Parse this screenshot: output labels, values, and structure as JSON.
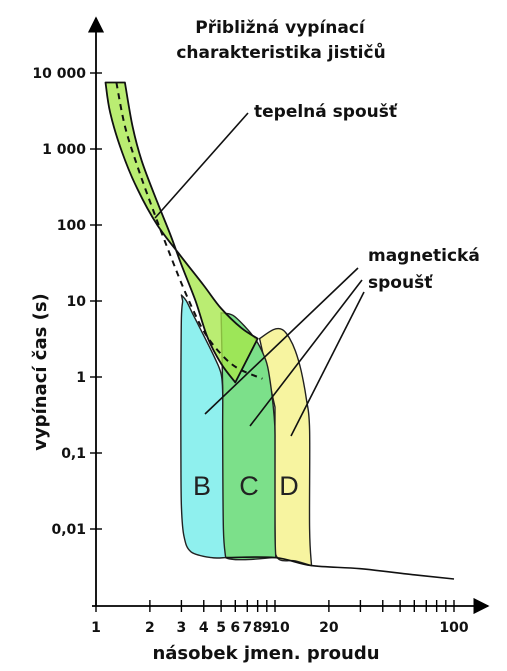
{
  "chart_data": {
    "type": "area",
    "title_lines": [
      "Přibližná vypínací",
      "charakteristika jističů"
    ],
    "xlabel": "násobek jmen. proudu",
    "ylabel": "vypínací čas (s)",
    "x_scale": "log",
    "y_scale": "log",
    "xlim": [
      1,
      100
    ],
    "ylim": [
      0.001,
      10000
    ],
    "x_tick_labels": [
      {
        "value": 1,
        "label": "1"
      },
      {
        "value": 2,
        "label": "2"
      },
      {
        "value": 3,
        "label": "3"
      },
      {
        "value": 4,
        "label": "4"
      },
      {
        "value": 5,
        "label": "5"
      },
      {
        "value": 6,
        "label": "6"
      },
      {
        "value": 7,
        "label": "7"
      },
      {
        "value": 8,
        "label": "8"
      },
      {
        "value": 9,
        "label": "9"
      },
      {
        "value": 10,
        "label": "10"
      },
      {
        "value": 20,
        "label": "20"
      },
      {
        "value": 100,
        "label": "100"
      }
    ],
    "x_minor_ticks": [
      30,
      40,
      50,
      60,
      70,
      80,
      90
    ],
    "y_tick_labels": [
      {
        "value": 10000,
        "label": "10 000"
      },
      {
        "value": 1000,
        "label": "1 000"
      },
      {
        "value": 100,
        "label": "100"
      },
      {
        "value": 10,
        "label": "10"
      },
      {
        "value": 1,
        "label": "1"
      },
      {
        "value": 0.1,
        "label": "0,1"
      },
      {
        "value": 0.01,
        "label": "0,01"
      }
    ],
    "annotations": {
      "thermal": "tepelná spoušť",
      "magnetic_lines": [
        "magnetická",
        "spoušť"
      ]
    },
    "thermal_band": {
      "color": "#a6e84a",
      "upper": [
        [
          1.13,
          7500
        ],
        [
          1.2,
          3000
        ],
        [
          1.4,
          900
        ],
        [
          1.7,
          300
        ],
        [
          2.2,
          100
        ],
        [
          3,
          38
        ],
        [
          4,
          16
        ],
        [
          5,
          8
        ],
        [
          6.5,
          4.4
        ],
        [
          8,
          3.2
        ]
      ],
      "lower": [
        [
          1.45,
          7500
        ],
        [
          1.6,
          2000
        ],
        [
          1.8,
          700
        ],
        [
          2.2,
          200
        ],
        [
          2.6,
          75
        ],
        [
          3,
          30
        ],
        [
          3.6,
          10
        ],
        [
          4.2,
          3.3
        ],
        [
          5,
          1.5
        ],
        [
          6,
          0.85
        ]
      ],
      "median": [
        [
          1.3,
          7500
        ],
        [
          1.45,
          2000
        ],
        [
          1.7,
          600
        ],
        [
          2.1,
          150
        ],
        [
          2.6,
          40
        ],
        [
          3.2,
          12
        ],
        [
          4,
          4
        ],
        [
          5,
          2
        ],
        [
          6.2,
          1.3
        ],
        [
          8.5,
          0.95
        ]
      ]
    },
    "series": [
      {
        "name": "B",
        "color": "#8ff0ee",
        "upper": [
          [
            3,
            12
          ],
          [
            3.2,
            10
          ],
          [
            3.5,
            6.5
          ],
          [
            4,
            3.5
          ],
          [
            4.6,
            1.8
          ],
          [
            5,
            1.1
          ],
          [
            5.1,
            0.6
          ],
          [
            5.1,
            0.15
          ],
          [
            5.15,
            0.01
          ],
          [
            5.3,
            0.0042
          ]
        ],
        "lower": [
          [
            3.05,
            10
          ],
          [
            3,
            6
          ],
          [
            2.98,
            1
          ],
          [
            2.98,
            0.1
          ],
          [
            3,
            0.02
          ],
          [
            3.1,
            0.008
          ],
          [
            3.4,
            0.005
          ],
          [
            4.4,
            0.0042
          ],
          [
            5.3,
            0.0042
          ]
        ]
      },
      {
        "name": "C",
        "color": "#7ce08a",
        "upper": [
          [
            5,
            7
          ],
          [
            5.8,
            6.5
          ],
          [
            6.8,
            4.6
          ],
          [
            7.8,
            3.1
          ],
          [
            8.6,
            2
          ],
          [
            9.2,
            1.2
          ],
          [
            9.9,
            0.3
          ],
          [
            10,
            0.12
          ],
          [
            10,
            0.01
          ],
          [
            10.1,
            0.0042
          ]
        ],
        "lower": [
          [
            5.1,
            0.7
          ],
          [
            5.05,
            0.1
          ],
          [
            5.1,
            0.01
          ],
          [
            5.3,
            0.0042
          ],
          [
            10.1,
            0.0042
          ]
        ]
      },
      {
        "name": "D",
        "color": "#f7f4a0",
        "upper": [
          [
            8.2,
            3.2
          ],
          [
            9.8,
            4.2
          ],
          [
            11,
            4.2
          ],
          [
            12,
            3.3
          ],
          [
            13,
            2.2
          ],
          [
            14,
            1.2
          ],
          [
            15,
            0.5
          ],
          [
            15.6,
            0.2
          ],
          [
            15.6,
            0.01
          ],
          [
            16,
            0.0033
          ]
        ],
        "lower": [
          [
            10,
            0.4
          ],
          [
            10,
            0.01
          ],
          [
            10.3,
            0.0042
          ],
          [
            13,
            0.0038
          ],
          [
            16,
            0.0033
          ]
        ]
      }
    ],
    "tail_curve": [
      [
        5.3,
        0.0042
      ],
      [
        10,
        0.0042
      ],
      [
        16,
        0.0033
      ],
      [
        30,
        0.003
      ],
      [
        60,
        0.0025
      ],
      [
        100,
        0.0022
      ]
    ]
  }
}
